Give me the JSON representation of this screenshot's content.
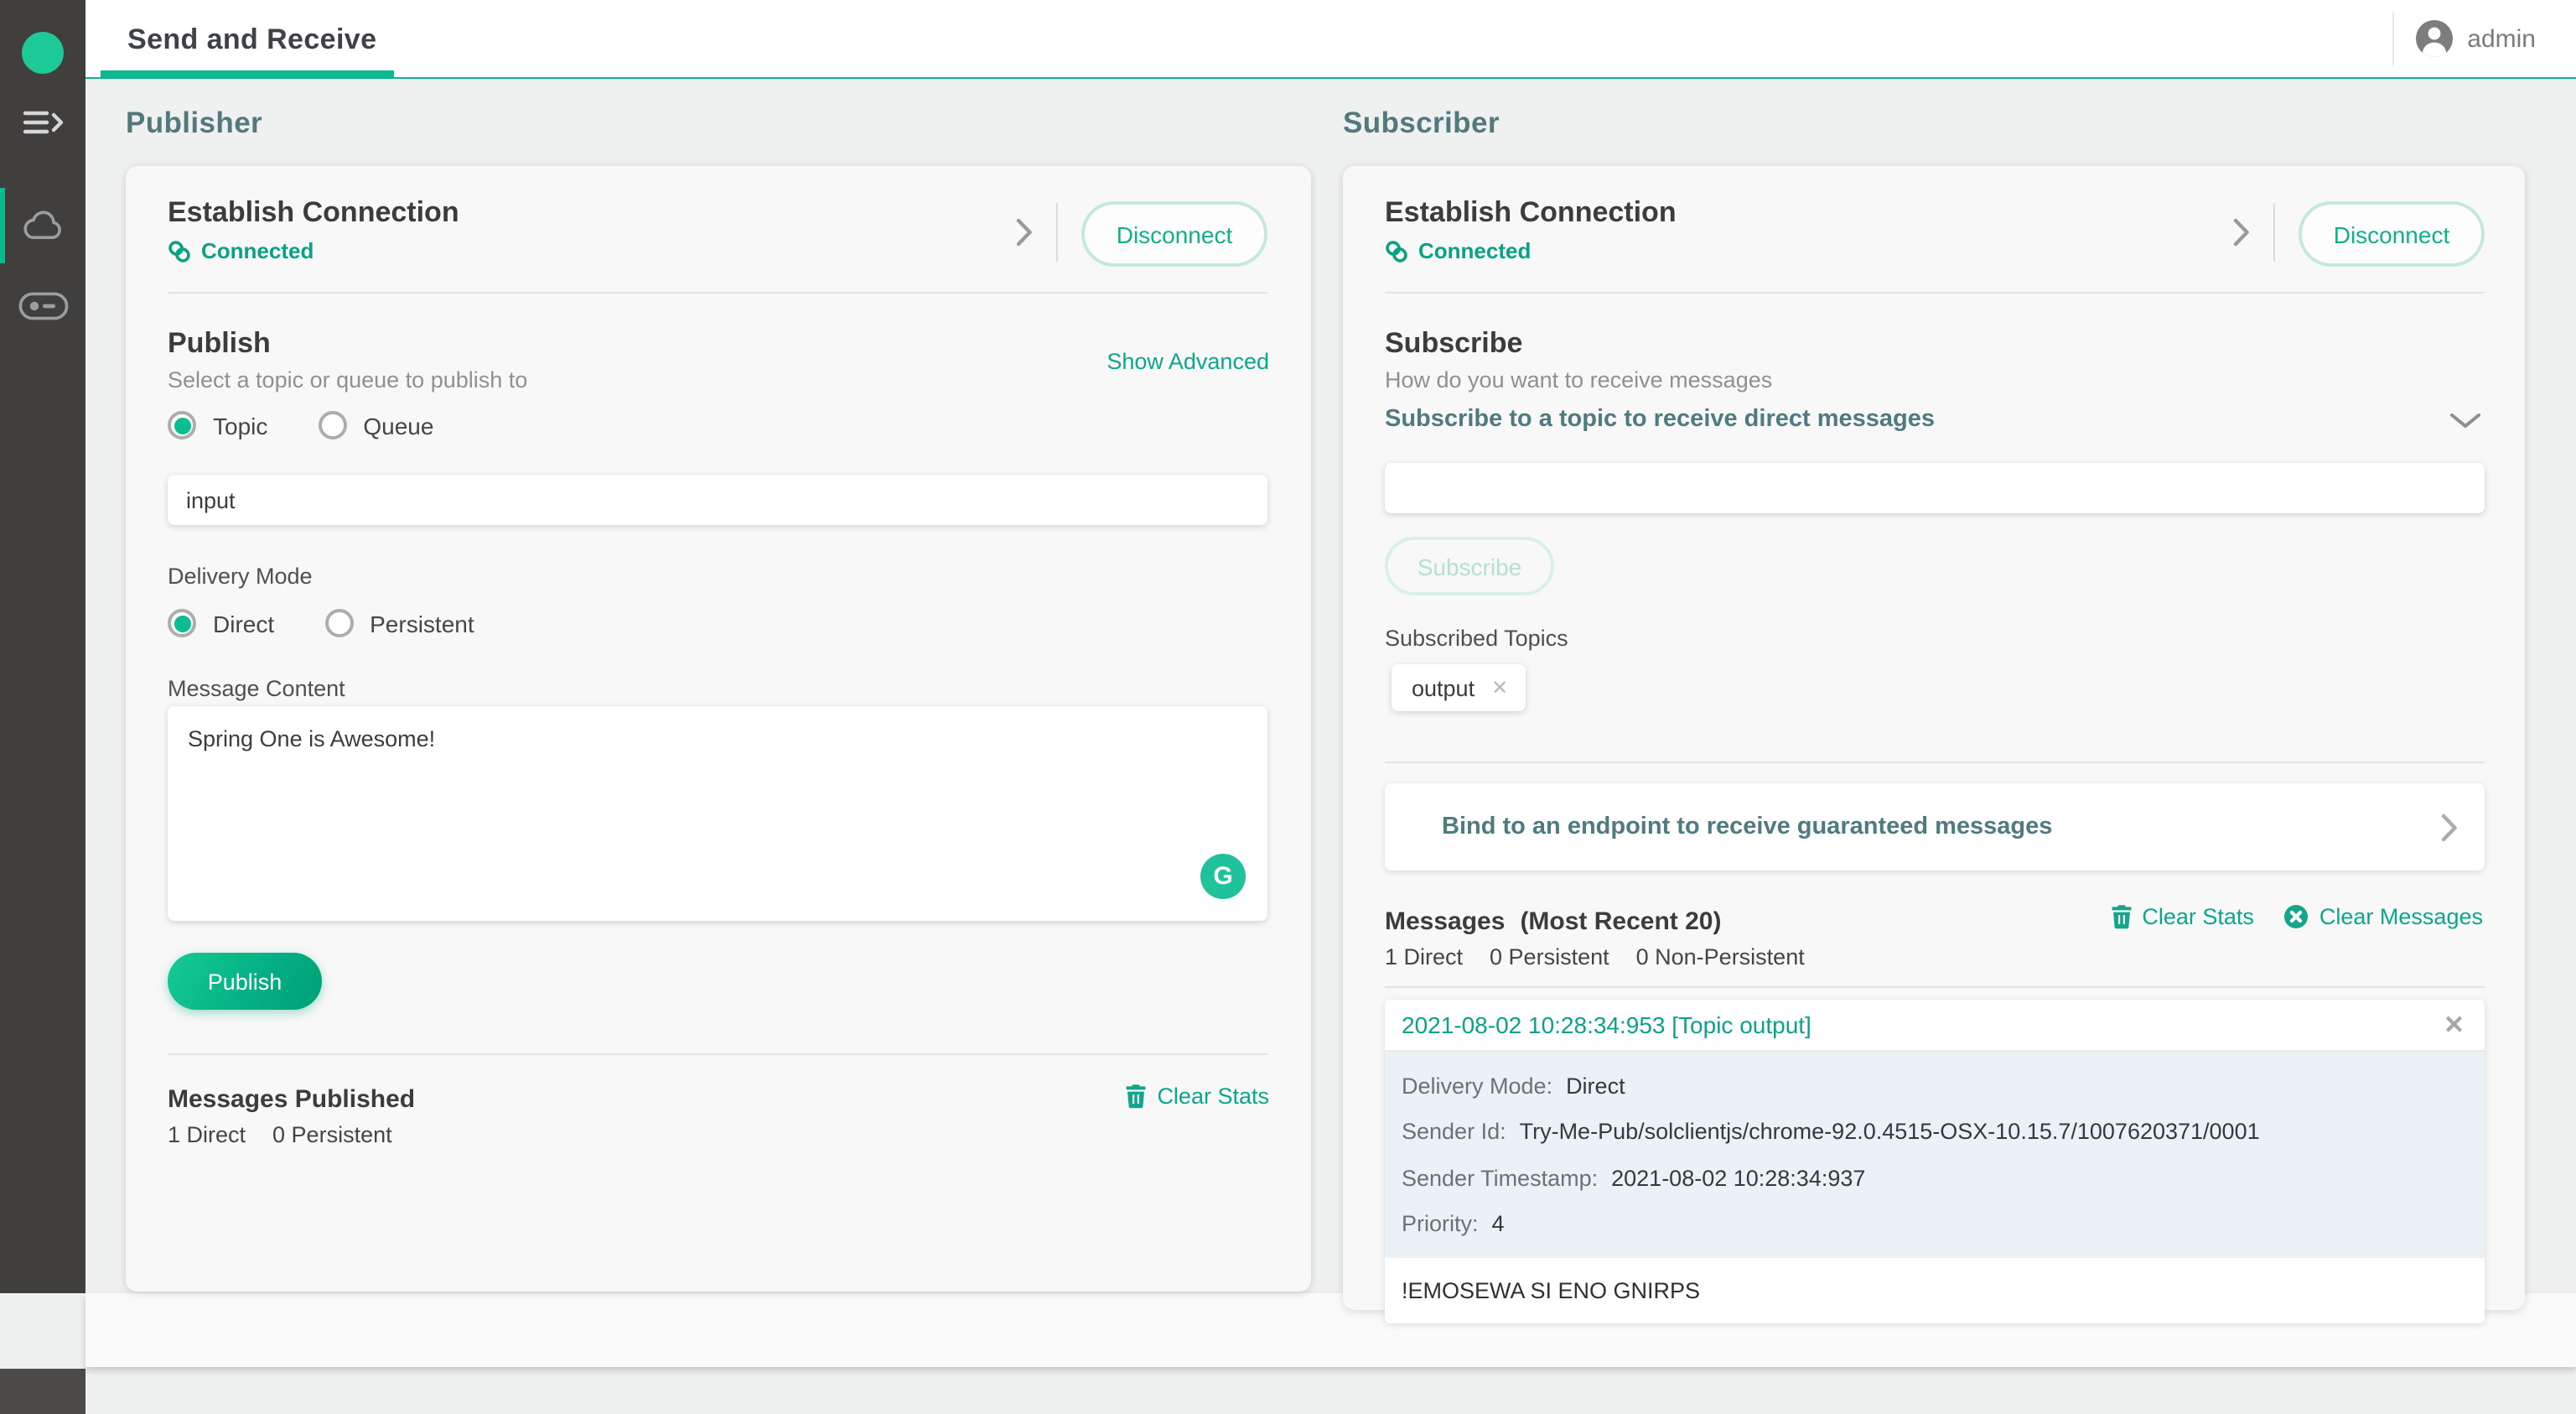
{
  "colors": {
    "accent_green": "#0cb98e",
    "link_teal": "#0ba78a",
    "slate_heading": "#527a7e",
    "sidebar_dark": "#413e3e",
    "meta_bg": "#ecf1f5"
  },
  "topbar": {
    "tab": "Send and Receive",
    "user": "admin"
  },
  "sidebar": {
    "icons": [
      "solace-logo",
      "menu-expand",
      "cloud",
      "connection-toggle"
    ]
  },
  "publisher": {
    "heading": "Publisher",
    "connection": {
      "title": "Establish Connection",
      "status": "Connected",
      "action": "Disconnect"
    },
    "publish": {
      "title": "Publish",
      "advanced_link": "Show Advanced",
      "subtitle": "Select a topic or queue to publish to",
      "destination_options": [
        {
          "label": "Topic",
          "selected": true
        },
        {
          "label": "Queue",
          "selected": false
        }
      ],
      "topic_value": "input",
      "delivery_mode_label": "Delivery Mode",
      "delivery_options": [
        {
          "label": "Direct",
          "selected": true
        },
        {
          "label": "Persistent",
          "selected": false
        }
      ],
      "message_content_label": "Message Content",
      "message_value": "Spring One is Awesome!",
      "grammarly_glyph": "G",
      "publish_button": "Publish"
    },
    "stats": {
      "title": "Messages Published",
      "clear_link": "Clear Stats",
      "counts": [
        "1 Direct",
        "0 Persistent"
      ]
    }
  },
  "subscriber": {
    "heading": "Subscriber",
    "connection": {
      "title": "Establish Connection",
      "status": "Connected",
      "action": "Disconnect"
    },
    "subscribe": {
      "title": "Subscribe",
      "subtitle": "How do you want to receive messages",
      "topic_row_label": "Subscribe to a topic to receive direct messages",
      "topic_input_value": "",
      "subscribe_button": "Subscribe",
      "topics_label": "Subscribed Topics",
      "topics": [
        "output"
      ]
    },
    "bind_label": "Bind to an endpoint to receive guaranteed messages",
    "messages": {
      "title": "Messages",
      "recent": "(Most Recent 20)",
      "clear_stats": "Clear Stats",
      "clear_messages": "Clear Messages",
      "counts": [
        "1 Direct",
        "0 Persistent",
        "0 Non-Persistent"
      ],
      "items": [
        {
          "header": "2021-08-02 10:28:34:953 [Topic output]",
          "fields": [
            {
              "label": "Delivery Mode:",
              "value": "Direct"
            },
            {
              "label": "Sender Id:",
              "value": "Try-Me-Pub/solclientjs/chrome-92.0.4515-OSX-10.15.7/1007620371/0001"
            },
            {
              "label": "Sender Timestamp:",
              "value": "2021-08-02 10:28:34:937"
            },
            {
              "label": "Priority:",
              "value": "4"
            }
          ],
          "payload": "!EMOSEWA SI ENO GNIRPS"
        }
      ]
    }
  }
}
